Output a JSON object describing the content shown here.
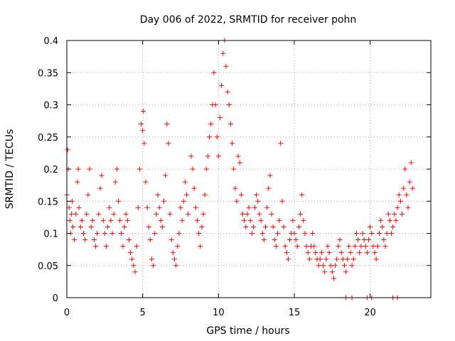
{
  "chart_data": {
    "type": "scatter",
    "title": "Day 006 of 2022, SRMTID for receiver pohn",
    "xlabel": "GPS time / hours",
    "ylabel": "SRMTID / TECUs",
    "xlim": [
      0,
      24
    ],
    "ylim": [
      0,
      0.4
    ],
    "xticks": [
      0,
      5,
      10,
      15,
      20
    ],
    "yticks": [
      0,
      0.05,
      0.1,
      0.15,
      0.2,
      0.25,
      0.3,
      0.35,
      0.4
    ],
    "xtick_labels": [
      "0",
      "5",
      "10",
      "15",
      "20"
    ],
    "ytick_labels": [
      "0",
      "0.05",
      "0.1",
      "0.15",
      "0.2",
      "0.25",
      "0.3",
      "0.35",
      "0.4"
    ],
    "grid": true,
    "marker": "+",
    "color": "#ff0000",
    "series": [
      {
        "name": "SRMTID",
        "points": [
          [
            0.0,
            0.16
          ],
          [
            0.05,
            0.23
          ],
          [
            0.1,
            0.2
          ],
          [
            0.15,
            0.14
          ],
          [
            0.2,
            0.12
          ],
          [
            0.25,
            0.1
          ],
          [
            0.3,
            0.13
          ],
          [
            0.35,
            0.15
          ],
          [
            0.4,
            0.11
          ],
          [
            0.5,
            0.09
          ],
          [
            0.6,
            0.13
          ],
          [
            0.7,
            0.18
          ],
          [
            0.75,
            0.2
          ],
          [
            0.8,
            0.14
          ],
          [
            0.9,
            0.11
          ],
          [
            1.0,
            0.12
          ],
          [
            1.1,
            0.1
          ],
          [
            1.2,
            0.09
          ],
          [
            1.3,
            0.13
          ],
          [
            1.4,
            0.16
          ],
          [
            1.5,
            0.2
          ],
          [
            1.6,
            0.11
          ],
          [
            1.7,
            0.12
          ],
          [
            1.8,
            0.09
          ],
          [
            1.9,
            0.08
          ],
          [
            2.0,
            0.1
          ],
          [
            2.1,
            0.13
          ],
          [
            2.2,
            0.17
          ],
          [
            2.3,
            0.19
          ],
          [
            2.4,
            0.12
          ],
          [
            2.5,
            0.1
          ],
          [
            2.6,
            0.08
          ],
          [
            2.7,
            0.11
          ],
          [
            2.8,
            0.14
          ],
          [
            2.9,
            0.12
          ],
          [
            3.0,
            0.1
          ],
          [
            3.1,
            0.13
          ],
          [
            3.2,
            0.18
          ],
          [
            3.3,
            0.2
          ],
          [
            3.4,
            0.15
          ],
          [
            3.5,
            0.12
          ],
          [
            3.6,
            0.1
          ],
          [
            3.7,
            0.08
          ],
          [
            3.8,
            0.11
          ],
          [
            3.9,
            0.13
          ],
          [
            4.0,
            0.12
          ],
          [
            4.1,
            0.09
          ],
          [
            4.2,
            0.07
          ],
          [
            4.3,
            0.06
          ],
          [
            4.4,
            0.05
          ],
          [
            4.5,
            0.04
          ],
          [
            4.6,
            0.08
          ],
          [
            4.7,
            0.14
          ],
          [
            4.8,
            0.2
          ],
          [
            4.9,
            0.27
          ],
          [
            5.0,
            0.26
          ],
          [
            5.05,
            0.29
          ],
          [
            5.1,
            0.24
          ],
          [
            5.2,
            0.18
          ],
          [
            5.3,
            0.14
          ],
          [
            5.4,
            0.11
          ],
          [
            5.5,
            0.09
          ],
          [
            5.6,
            0.06
          ],
          [
            5.7,
            0.05
          ],
          [
            5.8,
            0.1
          ],
          [
            5.9,
            0.13
          ],
          [
            6.0,
            0.16
          ],
          [
            6.1,
            0.14
          ],
          [
            6.2,
            0.12
          ],
          [
            6.3,
            0.11
          ],
          [
            6.4,
            0.15
          ],
          [
            6.5,
            0.19
          ],
          [
            6.6,
            0.27
          ],
          [
            6.7,
            0.24
          ],
          [
            6.8,
            0.13
          ],
          [
            6.9,
            0.09
          ],
          [
            7.0,
            0.07
          ],
          [
            7.1,
            0.06
          ],
          [
            7.2,
            0.05
          ],
          [
            7.3,
            0.08
          ],
          [
            7.4,
            0.1
          ],
          [
            7.5,
            0.14
          ],
          [
            7.6,
            0.12
          ],
          [
            7.7,
            0.15
          ],
          [
            7.8,
            0.18
          ],
          [
            7.9,
            0.16
          ],
          [
            8.0,
            0.13
          ],
          [
            8.2,
            0.22
          ],
          [
            8.3,
            0.2
          ],
          [
            8.4,
            0.17
          ],
          [
            8.5,
            0.14
          ],
          [
            8.6,
            0.12
          ],
          [
            8.7,
            0.1
          ],
          [
            8.8,
            0.08
          ],
          [
            8.9,
            0.11
          ],
          [
            9.0,
            0.13
          ],
          [
            9.1,
            0.16
          ],
          [
            9.2,
            0.2
          ],
          [
            9.3,
            0.22
          ],
          [
            9.4,
            0.25
          ],
          [
            9.5,
            0.27
          ],
          [
            9.6,
            0.3
          ],
          [
            9.7,
            0.35
          ],
          [
            9.8,
            0.3
          ],
          [
            9.9,
            0.25
          ],
          [
            10.0,
            0.22
          ],
          [
            10.1,
            0.28
          ],
          [
            10.2,
            0.33
          ],
          [
            10.3,
            0.38
          ],
          [
            10.4,
            0.4
          ],
          [
            10.5,
            0.36
          ],
          [
            10.6,
            0.32
          ],
          [
            10.7,
            0.3
          ],
          [
            10.8,
            0.27
          ],
          [
            10.9,
            0.24
          ],
          [
            11.0,
            0.2
          ],
          [
            11.1,
            0.17
          ],
          [
            11.2,
            0.15
          ],
          [
            11.3,
            0.22
          ],
          [
            11.4,
            0.21
          ],
          [
            11.5,
            0.16
          ],
          [
            11.6,
            0.13
          ],
          [
            11.7,
            0.12
          ],
          [
            11.8,
            0.11
          ],
          [
            11.9,
            0.13
          ],
          [
            12.0,
            0.14
          ],
          [
            12.1,
            0.12
          ],
          [
            12.2,
            0.1
          ],
          [
            12.3,
            0.11
          ],
          [
            12.4,
            0.14
          ],
          [
            12.5,
            0.16
          ],
          [
            12.6,
            0.15
          ],
          [
            12.7,
            0.13
          ],
          [
            12.8,
            0.12
          ],
          [
            12.9,
            0.1
          ],
          [
            13.0,
            0.09
          ],
          [
            13.1,
            0.11
          ],
          [
            13.2,
            0.14
          ],
          [
            13.3,
            0.17
          ],
          [
            13.4,
            0.19
          ],
          [
            13.5,
            0.13
          ],
          [
            13.6,
            0.11
          ],
          [
            13.7,
            0.09
          ],
          [
            13.8,
            0.08
          ],
          [
            13.9,
            0.1
          ],
          [
            14.0,
            0.12
          ],
          [
            14.1,
            0.24
          ],
          [
            14.2,
            0.15
          ],
          [
            14.3,
            0.11
          ],
          [
            14.4,
            0.08
          ],
          [
            14.5,
            0.07
          ],
          [
            14.6,
            0.06
          ],
          [
            14.7,
            0.09
          ],
          [
            14.8,
            0.1
          ],
          [
            14.9,
            0.12
          ],
          [
            15.0,
            0.1
          ],
          [
            15.1,
            0.09
          ],
          [
            15.2,
            0.08
          ],
          [
            15.3,
            0.11
          ],
          [
            15.4,
            0.13
          ],
          [
            15.5,
            0.16
          ],
          [
            15.6,
            0.12
          ],
          [
            15.7,
            0.1
          ],
          [
            15.8,
            0.08
          ],
          [
            15.9,
            0.07
          ],
          [
            16.0,
            0.06
          ],
          [
            16.1,
            0.08
          ],
          [
            16.2,
            0.1
          ],
          [
            16.3,
            0.08
          ],
          [
            16.4,
            0.07
          ],
          [
            16.5,
            0.06
          ],
          [
            16.6,
            0.05
          ],
          [
            16.7,
            0.06
          ],
          [
            16.8,
            0.07
          ],
          [
            16.9,
            0.05
          ],
          [
            17.0,
            0.04
          ],
          [
            17.1,
            0.06
          ],
          [
            17.2,
            0.08
          ],
          [
            17.3,
            0.07
          ],
          [
            17.4,
            0.05
          ],
          [
            17.5,
            0.04
          ],
          [
            17.6,
            0.03
          ],
          [
            17.7,
            0.05
          ],
          [
            17.8,
            0.06
          ],
          [
            17.9,
            0.08
          ],
          [
            18.0,
            0.09
          ],
          [
            18.1,
            0.07
          ],
          [
            18.2,
            0.06
          ],
          [
            18.3,
            0.05
          ],
          [
            18.4,
            0.04
          ],
          [
            18.5,
            0.06
          ],
          [
            18.6,
            0.08
          ],
          [
            18.7,
            0.07
          ],
          [
            18.8,
            0.05
          ],
          [
            18.9,
            0.06
          ],
          [
            19.0,
            0.08
          ],
          [
            19.1,
            0.1
          ],
          [
            19.2,
            0.09
          ],
          [
            19.3,
            0.07
          ],
          [
            19.4,
            0.08
          ],
          [
            19.5,
            0.1
          ],
          [
            19.6,
            0.09
          ],
          [
            19.7,
            0.08
          ],
          [
            19.8,
            0.07
          ],
          [
            19.9,
            0.09
          ],
          [
            20.0,
            0.11
          ],
          [
            20.1,
            0.1
          ],
          [
            20.2,
            0.08
          ],
          [
            20.3,
            0.07
          ],
          [
            20.4,
            0.06
          ],
          [
            20.5,
            0.08
          ],
          [
            20.6,
            0.1
          ],
          [
            20.7,
            0.12
          ],
          [
            20.8,
            0.11
          ],
          [
            20.9,
            0.09
          ],
          [
            21.0,
            0.08
          ],
          [
            21.1,
            0.1
          ],
          [
            21.2,
            0.13
          ],
          [
            21.3,
            0.12
          ],
          [
            21.4,
            0.1
          ],
          [
            21.5,
            0.11
          ],
          [
            21.6,
            0.13
          ],
          [
            21.7,
            0.12
          ],
          [
            21.8,
            0.14
          ],
          [
            21.9,
            0.16
          ],
          [
            22.0,
            0.15
          ],
          [
            22.1,
            0.13
          ],
          [
            22.2,
            0.17
          ],
          [
            22.3,
            0.2
          ],
          [
            22.4,
            0.16
          ],
          [
            22.5,
            0.14
          ],
          [
            22.6,
            0.18
          ],
          [
            22.7,
            0.21
          ],
          [
            22.8,
            0.17
          ],
          [
            18.4,
            0.0
          ],
          [
            18.8,
            0.0
          ],
          [
            19.8,
            0.0
          ],
          [
            20.1,
            0.0
          ],
          [
            21.5,
            0.0
          ],
          [
            21.8,
            0.0
          ]
        ]
      }
    ]
  }
}
